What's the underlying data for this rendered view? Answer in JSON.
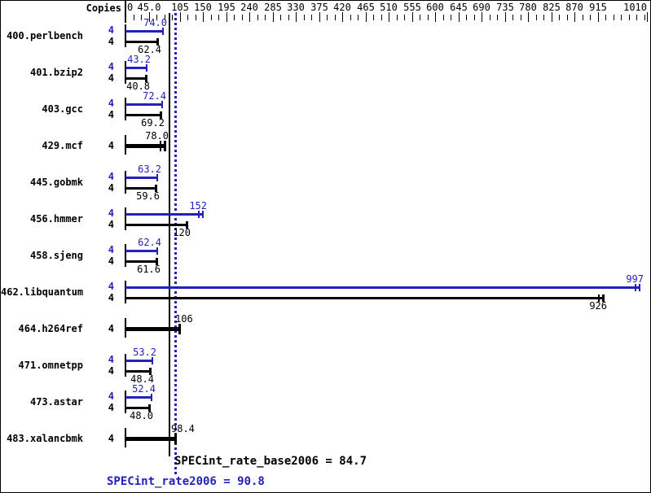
{
  "header": {
    "copies_label": "Copies"
  },
  "axis": {
    "max_value": 1010,
    "minor_step": 15,
    "major_ticks": [
      {
        "value": 0,
        "label": "0"
      },
      {
        "value": 45,
        "label": "45.0"
      },
      {
        "value": 105,
        "label": "105"
      },
      {
        "value": 150,
        "label": "150"
      },
      {
        "value": 195,
        "label": "195"
      },
      {
        "value": 240,
        "label": "240"
      },
      {
        "value": 285,
        "label": "285"
      },
      {
        "value": 330,
        "label": "330"
      },
      {
        "value": 375,
        "label": "375"
      },
      {
        "value": 420,
        "label": "420"
      },
      {
        "value": 465,
        "label": "465"
      },
      {
        "value": 510,
        "label": "510"
      },
      {
        "value": 555,
        "label": "555"
      },
      {
        "value": 600,
        "label": "600"
      },
      {
        "value": 645,
        "label": "645"
      },
      {
        "value": 690,
        "label": "690"
      },
      {
        "value": 735,
        "label": "735"
      },
      {
        "value": 780,
        "label": "780"
      },
      {
        "value": 825,
        "label": "825"
      },
      {
        "value": 870,
        "label": "870"
      },
      {
        "value": 915,
        "label": "915"
      },
      {
        "value": 1010,
        "label": "1010"
      }
    ]
  },
  "colors": {
    "peak_blue": "#2222bb",
    "base_black": "#000000",
    "background": "#ffffff"
  },
  "chart_data": {
    "type": "bar",
    "orientation": "horizontal",
    "title": "SPEC CINT2006 rate result graph",
    "xlabel": "",
    "ylabel": "Copies",
    "xlim": [
      0,
      1010
    ],
    "grid": false,
    "categories": [
      "400.perlbench",
      "401.bzip2",
      "403.gcc",
      "429.mcf",
      "445.gobmk",
      "456.hmmer",
      "458.sjeng",
      "462.libquantum",
      "464.h264ref",
      "471.omnetpp",
      "473.astar",
      "483.xalancbmk"
    ],
    "copies_per_benchmark": [
      4,
      4,
      4,
      4,
      4,
      4,
      4,
      4,
      4,
      4,
      4,
      4
    ],
    "series": [
      {
        "name": "peak",
        "color": "#2222bb",
        "values": [
          74.0,
          43.2,
          72.4,
          78.0,
          63.2,
          152,
          62.4,
          997,
          106,
          53.2,
          52.4,
          98.4
        ]
      },
      {
        "name": "base",
        "color": "#000000",
        "values": [
          62.4,
          40.8,
          69.2,
          78.0,
          59.6,
          120,
          61.6,
          926,
          106,
          48.4,
          48.0,
          98.4
        ]
      }
    ],
    "reference_lines": [
      {
        "name": "SPECint_rate_base2006",
        "value": 84.7,
        "style": "solid",
        "color": "#000000"
      },
      {
        "name": "SPECint_rate2006",
        "value": 90.8,
        "style": "dotted",
        "color": "#2222bb"
      }
    ]
  },
  "benchmarks": [
    {
      "name": "400.perlbench",
      "rows": [
        {
          "kind": "peak",
          "copies": "4",
          "value": 74.0,
          "label": "74.0"
        },
        {
          "kind": "base",
          "copies": "4",
          "value": 62.4,
          "label": "62.4"
        }
      ]
    },
    {
      "name": "401.bzip2",
      "rows": [
        {
          "kind": "peak",
          "copies": "4",
          "value": 43.2,
          "label": "43.2"
        },
        {
          "kind": "base",
          "copies": "4",
          "value": 40.8,
          "label": "40.8"
        }
      ]
    },
    {
      "name": "403.gcc",
      "rows": [
        {
          "kind": "peak",
          "copies": "4",
          "value": 72.4,
          "label": "72.4"
        },
        {
          "kind": "base",
          "copies": "4",
          "value": 69.2,
          "label": "69.2"
        }
      ]
    },
    {
      "name": "429.mcf",
      "rows": [
        {
          "kind": "single",
          "copies": "4",
          "value": 78.0,
          "label": "78.0",
          "double_cap": true
        }
      ]
    },
    {
      "name": "445.gobmk",
      "rows": [
        {
          "kind": "peak",
          "copies": "4",
          "value": 63.2,
          "label": "63.2"
        },
        {
          "kind": "base",
          "copies": "4",
          "value": 59.6,
          "label": "59.6"
        }
      ]
    },
    {
      "name": "456.hmmer",
      "rows": [
        {
          "kind": "peak",
          "copies": "4",
          "value": 152,
          "label": "152",
          "double_cap": true
        },
        {
          "kind": "base",
          "copies": "4",
          "value": 120,
          "label": "120"
        }
      ]
    },
    {
      "name": "458.sjeng",
      "rows": [
        {
          "kind": "peak",
          "copies": "4",
          "value": 62.4,
          "label": "62.4"
        },
        {
          "kind": "base",
          "copies": "4",
          "value": 61.6,
          "label": "61.6"
        }
      ]
    },
    {
      "name": "462.libquantum",
      "rows": [
        {
          "kind": "peak",
          "copies": "4",
          "value": 997,
          "label": "997",
          "double_cap": true
        },
        {
          "kind": "base",
          "copies": "4",
          "value": 926,
          "label": "926",
          "double_cap": true
        }
      ]
    },
    {
      "name": "464.h264ref",
      "rows": [
        {
          "kind": "single",
          "copies": "4",
          "value": 106,
          "label": "106",
          "label_left": true
        }
      ]
    },
    {
      "name": "471.omnetpp",
      "rows": [
        {
          "kind": "peak",
          "copies": "4",
          "value": 53.2,
          "label": "53.2"
        },
        {
          "kind": "base",
          "copies": "4",
          "value": 48.4,
          "label": "48.4"
        }
      ]
    },
    {
      "name": "473.astar",
      "rows": [
        {
          "kind": "peak",
          "copies": "4",
          "value": 52.4,
          "label": "52.4"
        },
        {
          "kind": "base",
          "copies": "4",
          "value": 48.0,
          "label": "48.0"
        }
      ]
    },
    {
      "name": "483.xalancbmk",
      "rows": [
        {
          "kind": "single",
          "copies": "4",
          "value": 98.4,
          "label": "98.4",
          "label_left": true
        }
      ]
    }
  ],
  "footer": {
    "base_metric": "SPECint_rate_base2006 = 84.7",
    "peak_metric": "SPECint_rate2006 = 90.8"
  }
}
